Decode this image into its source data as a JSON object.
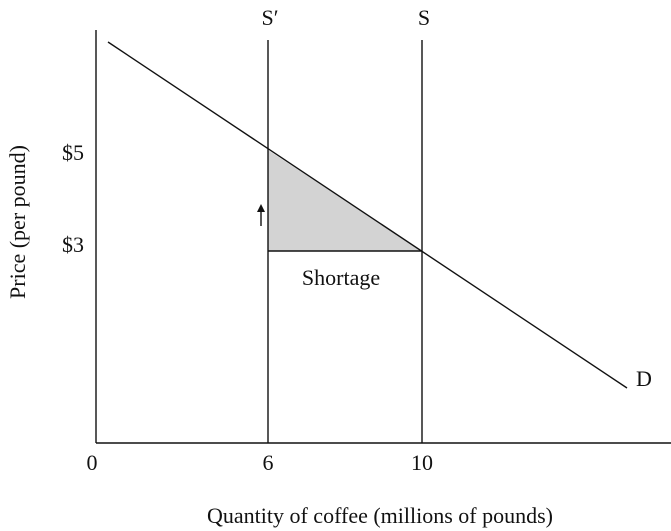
{
  "axes": {
    "x_title": "Quantity of coffee (millions of pounds)",
    "y_title": "Price (per pound)",
    "x_ticks": [
      "0",
      "6",
      "10"
    ],
    "y_ticks": [
      "$5",
      "$3"
    ]
  },
  "curves": {
    "supply_new": "S′",
    "supply": "S",
    "demand": "D"
  },
  "region": {
    "label": "Shortage"
  }
}
